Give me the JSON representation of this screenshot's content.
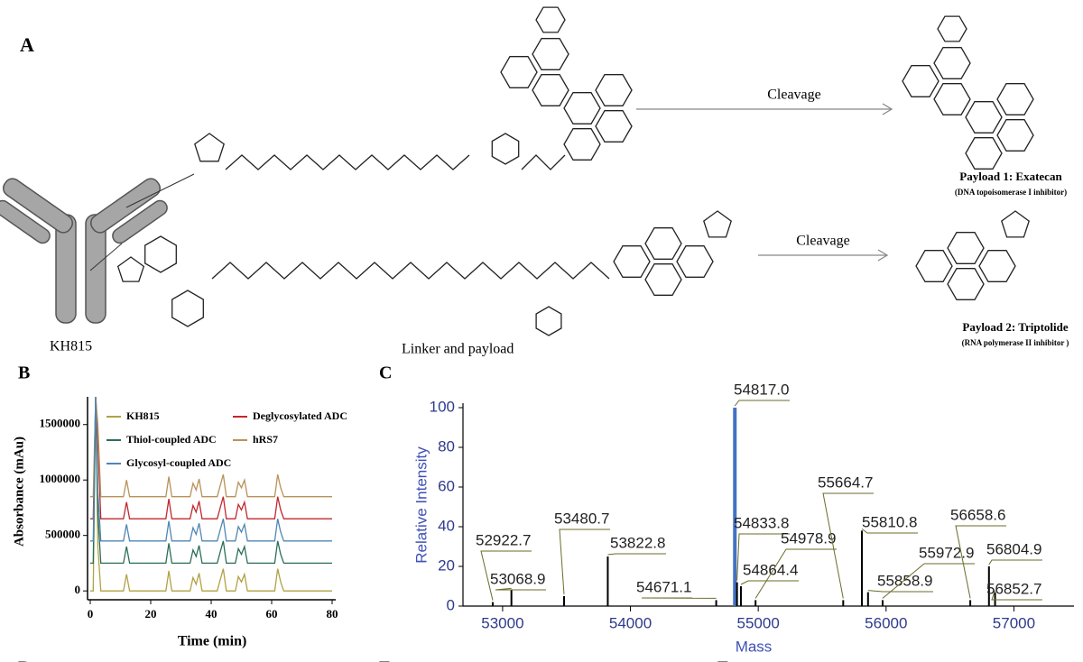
{
  "panels": {
    "a": "A",
    "b": "B",
    "c": "C",
    "d": "D",
    "e": "E",
    "f": "F"
  },
  "diagram": {
    "antibody": "KH815",
    "linker": "Linker and payload",
    "cleavage_1": "Cleavage",
    "cleavage_2": "Cleavage",
    "payload_1": "Payload 1: Exatecan",
    "payload_1_note": "(DNA topoisomerase I inhibitor)",
    "payload_2": "Payload 2: Triptolide",
    "payload_2_note": "(RNA polymerase II inhibitor )"
  },
  "chart_data": [
    {
      "type": "line",
      "xlabel": "Time (min)",
      "ylabel": "Absorbance (mAu)",
      "xlim": [
        0,
        80
      ],
      "ylim": [
        -80000,
        1750000
      ],
      "xticks": [
        0,
        20,
        40,
        60,
        80
      ],
      "yticks": [
        0,
        500000,
        1000000,
        1500000
      ],
      "x": [
        0,
        1,
        1.8,
        2.5,
        3.5,
        11,
        12,
        13,
        25,
        26,
        27,
        33,
        34,
        35,
        36,
        37,
        42,
        43,
        44,
        45,
        48,
        49,
        50,
        51,
        52,
        61,
        62,
        63,
        64,
        80
      ],
      "series": [
        {
          "name": "KH815",
          "color": "#b0a245",
          "values": [
            0,
            0,
            1750000,
            400000,
            0,
            0,
            150000,
            0,
            0,
            180000,
            0,
            0,
            120000,
            60000,
            160000,
            0,
            0,
            100000,
            200000,
            0,
            0,
            130000,
            80000,
            150000,
            0,
            0,
            200000,
            80000,
            0,
            0
          ]
        },
        {
          "name": "Deglycosylated ADC",
          "color": "#c0282d",
          "values": [
            650000,
            650000,
            1750000,
            1350000,
            650000,
            650000,
            800000,
            650000,
            650000,
            830000,
            650000,
            650000,
            770000,
            710000,
            810000,
            650000,
            650000,
            750000,
            850000,
            650000,
            650000,
            780000,
            730000,
            800000,
            650000,
            650000,
            850000,
            730000,
            650000,
            650000
          ]
        },
        {
          "name": "Thiol-coupled ADC",
          "color": "#2c6e5a",
          "values": [
            250000,
            250000,
            1750000,
            700000,
            250000,
            250000,
            400000,
            250000,
            250000,
            430000,
            250000,
            250000,
            370000,
            310000,
            410000,
            250000,
            250000,
            350000,
            450000,
            250000,
            250000,
            380000,
            330000,
            400000,
            250000,
            250000,
            450000,
            330000,
            250000,
            250000
          ]
        },
        {
          "name": "hRS7",
          "color": "#b8925a",
          "values": [
            850000,
            850000,
            1750000,
            1500000,
            850000,
            850000,
            1000000,
            850000,
            850000,
            1030000,
            850000,
            850000,
            970000,
            910000,
            1010000,
            850000,
            850000,
            950000,
            1050000,
            850000,
            850000,
            980000,
            930000,
            1000000,
            850000,
            850000,
            1050000,
            930000,
            850000,
            850000
          ]
        },
        {
          "name": "Glycosyl-coupled ADC",
          "color": "#4f86b5",
          "values": [
            450000,
            450000,
            1750000,
            900000,
            450000,
            450000,
            600000,
            450000,
            450000,
            630000,
            450000,
            450000,
            570000,
            510000,
            610000,
            450000,
            450000,
            550000,
            650000,
            450000,
            450000,
            580000,
            530000,
            600000,
            450000,
            450000,
            650000,
            530000,
            450000,
            450000
          ]
        }
      ]
    },
    {
      "type": "bar",
      "xlabel": "Mass",
      "ylabel": "Relative Intensity",
      "xlim": [
        52690,
        57470
      ],
      "ylim": [
        0,
        100
      ],
      "xticks": [
        53000,
        54000,
        55000,
        56000,
        57000
      ],
      "yticks": [
        0,
        20,
        40,
        60,
        80,
        100
      ],
      "x": [
        52922.7,
        53068.9,
        53480.7,
        53822.8,
        54671.1,
        54817.0,
        54833.8,
        54864.4,
        54978.9,
        55664.7,
        55810.8,
        55858.9,
        55972.9,
        56658.6,
        56804.9,
        56852.7
      ],
      "x_labels": [
        "52922.7",
        "53068.9",
        "53480.7",
        "53822.8",
        "54671.1",
        "54817.0",
        "54833.8",
        "54864.4",
        "54978.9",
        "55664.7",
        "55810.8",
        "55858.9",
        "55972.9",
        "56658.6",
        "56804.9",
        "56852.7"
      ],
      "values": [
        2,
        8,
        5,
        25,
        3,
        100,
        12,
        10,
        3,
        3,
        38,
        7,
        3,
        3,
        20,
        7
      ],
      "colors": [
        "#000000",
        "#000000",
        "#000000",
        "#000000",
        "#000000",
        "#4472c4",
        "#000000",
        "#000000",
        "#000000",
        "#000000",
        "#000000",
        "#000000",
        "#000000",
        "#000000",
        "#000000",
        "#000000"
      ]
    }
  ]
}
